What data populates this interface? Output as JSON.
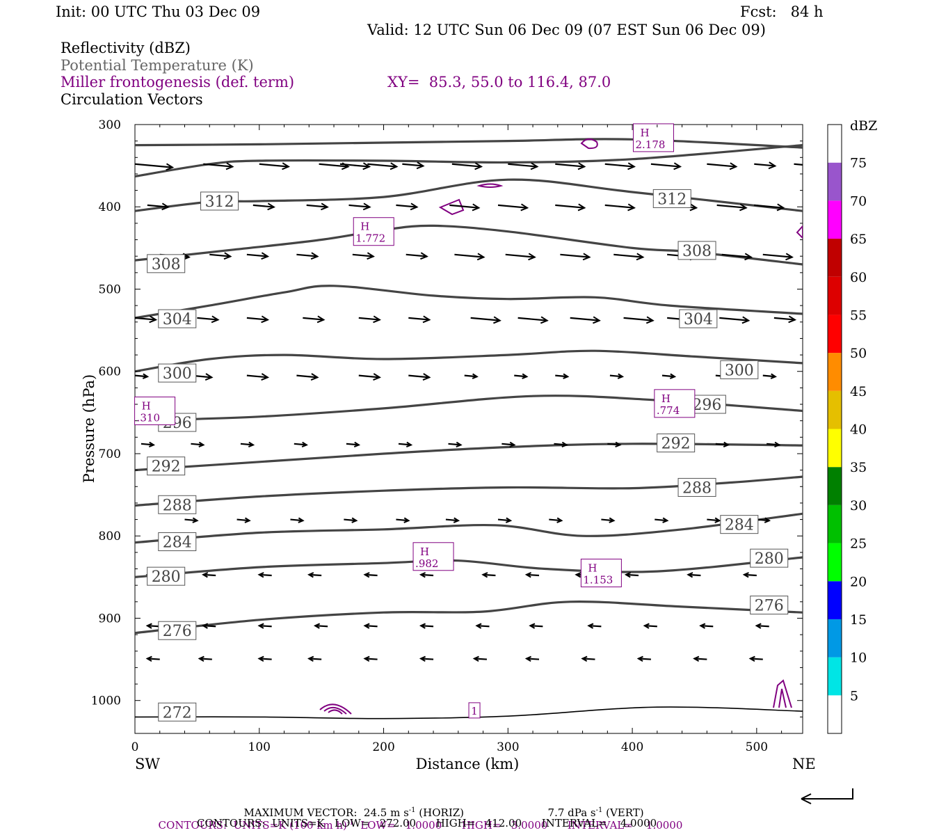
{
  "header": {
    "init": "Init: 00 UTC Thu 03 Dec 09",
    "fcst": "Fcst:   84 h",
    "valid": "Valid: 12 UTC Sun 06 Dec 09 (07 EST Sun 06 Dec 09)",
    "field1": "Reflectivity (dBZ)",
    "field2": "Potential Temperature (K)",
    "field3": "Miller frontogenesis (def. term)",
    "xy": "XY=  85.3, 55.0 to 116.4, 87.0",
    "field4": "Circulation Vectors"
  },
  "colors": {
    "theta": "#444444",
    "frontogenesis": "#800080",
    "vectors": "#000000"
  },
  "chart_data": {
    "type": "cross-section",
    "xlabel": "Distance (km)",
    "ylabel": "Pressure (hPa)",
    "xlim": [
      0,
      537
    ],
    "ylim": [
      1040,
      300
    ],
    "x_ticks": [
      0,
      100,
      200,
      300,
      400,
      500
    ],
    "y_ticks": [
      300,
      400,
      500,
      600,
      700,
      800,
      900,
      1000
    ],
    "left_end": "SW",
    "right_end": "NE",
    "theta_contours": [
      {
        "label": "312",
        "points": [
          [
            0,
            325
          ],
          [
            100,
            324
          ],
          [
            200,
            322
          ],
          [
            300,
            320
          ],
          [
            400,
            318
          ],
          [
            537,
            328
          ]
        ]
      },
      {
        "label": "312",
        "points": [
          [
            0,
            363
          ],
          [
            60,
            348
          ],
          [
            100,
            344
          ],
          [
            200,
            344
          ],
          [
            300,
            346
          ],
          [
            400,
            342
          ],
          [
            537,
            325
          ]
        ]
      },
      {
        "label": "312",
        "points": [
          [
            0,
            405
          ],
          [
            60,
            394
          ],
          [
            100,
            393
          ],
          [
            200,
            388
          ],
          [
            300,
            367
          ],
          [
            400,
            382
          ],
          [
            537,
            405
          ]
        ]
      },
      {
        "label": "308",
        "points": [
          [
            0,
            465
          ],
          [
            80,
            452
          ],
          [
            150,
            440
          ],
          [
            200,
            428
          ],
          [
            240,
            423
          ],
          [
            300,
            430
          ],
          [
            400,
            450
          ],
          [
            450,
            455
          ],
          [
            537,
            470
          ]
        ]
      },
      {
        "label": "304",
        "points": [
          [
            0,
            535
          ],
          [
            60,
            520
          ],
          [
            120,
            504
          ],
          [
            160,
            496
          ],
          [
            240,
            508
          ],
          [
            300,
            512
          ],
          [
            370,
            510
          ],
          [
            430,
            520
          ],
          [
            537,
            530
          ]
        ]
      },
      {
        "label": "300",
        "points": [
          [
            0,
            600
          ],
          [
            60,
            585
          ],
          [
            120,
            580
          ],
          [
            200,
            585
          ],
          [
            300,
            580
          ],
          [
            370,
            575
          ],
          [
            450,
            582
          ],
          [
            537,
            590
          ]
        ]
      },
      {
        "label": "296",
        "points": [
          [
            0,
            660
          ],
          [
            100,
            655
          ],
          [
            200,
            645
          ],
          [
            320,
            630
          ],
          [
            420,
            635
          ],
          [
            537,
            648
          ]
        ]
      },
      {
        "label": "292",
        "points": [
          [
            0,
            720
          ],
          [
            100,
            710
          ],
          [
            200,
            700
          ],
          [
            300,
            692
          ],
          [
            400,
            688
          ],
          [
            537,
            690
          ]
        ]
      },
      {
        "label": "288",
        "points": [
          [
            0,
            763
          ],
          [
            100,
            752
          ],
          [
            200,
            745
          ],
          [
            300,
            741
          ],
          [
            400,
            742
          ],
          [
            480,
            735
          ],
          [
            537,
            728
          ]
        ]
      },
      {
        "label": "284",
        "points": [
          [
            0,
            808
          ],
          [
            100,
            796
          ],
          [
            200,
            792
          ],
          [
            290,
            787
          ],
          [
            360,
            800
          ],
          [
            440,
            792
          ],
          [
            537,
            773
          ]
        ]
      },
      {
        "label": "280",
        "points": [
          [
            0,
            850
          ],
          [
            100,
            838
          ],
          [
            200,
            833
          ],
          [
            260,
            830
          ],
          [
            330,
            840
          ],
          [
            420,
            843
          ],
          [
            537,
            826
          ]
        ]
      },
      {
        "label": "276",
        "points": [
          [
            0,
            918
          ],
          [
            100,
            902
          ],
          [
            200,
            893
          ],
          [
            280,
            892
          ],
          [
            350,
            880
          ],
          [
            440,
            886
          ],
          [
            537,
            893
          ]
        ]
      },
      {
        "label": "272",
        "points": [
          [
            0,
            1020
          ],
          [
            100,
            1020
          ],
          [
            200,
            1022
          ],
          [
            300,
            1019
          ],
          [
            420,
            1008
          ],
          [
            537,
            1013
          ]
        ]
      }
    ],
    "theta_labels": [
      {
        "text": "312",
        "x": 68,
        "p": 393
      },
      {
        "text": "312",
        "x": 432,
        "p": 390
      },
      {
        "text": "308",
        "x": 25,
        "p": 469
      },
      {
        "text": "308",
        "x": 452,
        "p": 453
      },
      {
        "text": "304",
        "x": 34,
        "p": 536
      },
      {
        "text": "304",
        "x": 453,
        "p": 536
      },
      {
        "text": "300",
        "x": 34,
        "p": 602
      },
      {
        "text": "300",
        "x": 486,
        "p": 598
      },
      {
        "text": "296",
        "x": 34,
        "p": 662
      },
      {
        "text": "296",
        "x": 460,
        "p": 640
      },
      {
        "text": "292",
        "x": 25,
        "p": 715
      },
      {
        "text": "292",
        "x": 435,
        "p": 687
      },
      {
        "text": "288",
        "x": 34,
        "p": 762
      },
      {
        "text": "288",
        "x": 452,
        "p": 741
      },
      {
        "text": "284",
        "x": 34,
        "p": 807
      },
      {
        "text": "284",
        "x": 486,
        "p": 786
      },
      {
        "text": "280",
        "x": 25,
        "p": 849
      },
      {
        "text": "280",
        "x": 510,
        "p": 827
      },
      {
        "text": "276",
        "x": 34,
        "p": 915
      },
      {
        "text": "276",
        "x": 510,
        "p": 884
      },
      {
        "text": "272",
        "x": 34,
        "p": 1014
      }
    ],
    "frontogenesis_maxima": [
      {
        "text": "H",
        "value": "2.178",
        "x": 417,
        "p": 316
      },
      {
        "text": "H",
        "value": "1.772",
        "x": 192,
        "p": 430
      },
      {
        "text": "H",
        "value": ".310",
        "x": 16,
        "p": 648
      },
      {
        "text": "H",
        "value": ".774",
        "x": 434,
        "p": 639
      },
      {
        "text": "H",
        "value": ".982",
        "x": 240,
        "p": 825
      },
      {
        "text": "H",
        "value": "1.153",
        "x": 375,
        "p": 845
      },
      {
        "text": "",
        "value": "1",
        "x": 273,
        "p": 1012
      }
    ],
    "vectors": [
      {
        "p": 348,
        "items": [
          [
            0,
            -4
          ],
          [
            55,
            -3
          ],
          [
            100,
            -3
          ],
          [
            148,
            -3
          ],
          [
            165,
            -3
          ],
          [
            187,
            -3
          ],
          [
            215,
            -2
          ],
          [
            255,
            -3
          ],
          [
            300,
            -3
          ],
          [
            338,
            -3
          ],
          [
            378,
            -3
          ],
          [
            415,
            -3
          ],
          [
            460,
            -3
          ],
          [
            498,
            -2
          ],
          [
            530,
            -3
          ]
        ]
      },
      {
        "p": 398,
        "items": [
          [
            10,
            -2
          ],
          [
            55,
            -2
          ],
          [
            95,
            -2
          ],
          [
            138,
            -2
          ],
          [
            172,
            -2
          ],
          [
            210,
            -2
          ],
          [
            253,
            -3
          ],
          [
            292,
            -3
          ],
          [
            338,
            -3
          ],
          [
            378,
            -3
          ],
          [
            428,
            -3
          ],
          [
            468,
            -3
          ],
          [
            498,
            -3
          ],
          [
            537,
            -2
          ]
        ]
      },
      {
        "p": 458,
        "items": [
          [
            20,
            -3
          ],
          [
            60,
            -2
          ],
          [
            90,
            -2
          ],
          [
            130,
            -2
          ],
          [
            175,
            -2
          ],
          [
            218,
            -2
          ],
          [
            257,
            -3
          ],
          [
            298,
            -3
          ],
          [
            342,
            -3
          ],
          [
            385,
            -3
          ],
          [
            428,
            -3
          ],
          [
            472,
            -3
          ],
          [
            505,
            -3
          ],
          [
            537,
            -2
          ]
        ]
      },
      {
        "p": 535,
        "items": [
          [
            0,
            -2
          ],
          [
            50,
            -2
          ],
          [
            90,
            -2
          ],
          [
            135,
            -2
          ],
          [
            180,
            -2
          ],
          [
            220,
            -2
          ],
          [
            270,
            -3
          ],
          [
            308,
            -3
          ],
          [
            350,
            -3
          ],
          [
            393,
            -3
          ],
          [
            428,
            -3
          ],
          [
            470,
            -3
          ],
          [
            514,
            -2
          ]
        ]
      },
      {
        "p": 605,
        "items": [
          [
            0,
            -1
          ],
          [
            45,
            -2
          ],
          [
            90,
            -2
          ],
          [
            130,
            -2
          ],
          [
            180,
            -2
          ],
          [
            220,
            -2
          ],
          [
            265,
            -1
          ],
          [
            305,
            -1
          ],
          [
            338,
            -1
          ],
          [
            382,
            -1
          ],
          [
            424,
            -1
          ],
          [
            467,
            -1
          ],
          [
            505,
            -1
          ]
        ]
      },
      {
        "p": 688,
        "items": [
          [
            5,
            -1
          ],
          [
            45,
            -1
          ],
          [
            85,
            -1
          ],
          [
            128,
            -1
          ],
          [
            170,
            -1
          ],
          [
            212,
            -1
          ],
          [
            252,
            -1
          ],
          [
            295,
            -1
          ],
          [
            337,
            -1
          ],
          [
            380,
            -1
          ],
          [
            424,
            -1
          ],
          [
            467,
            -1
          ],
          [
            508,
            -1
          ]
        ]
      },
      {
        "p": 780,
        "items": [
          [
            40,
            -1
          ],
          [
            82,
            -1
          ],
          [
            125,
            -1
          ],
          [
            168,
            -1
          ],
          [
            210,
            -1
          ],
          [
            250,
            -1
          ],
          [
            292,
            -1
          ],
          [
            333,
            -1
          ],
          [
            375,
            -1
          ],
          [
            418,
            -1
          ],
          [
            460,
            -1
          ],
          [
            500,
            -1
          ]
        ]
      },
      {
        "p": 848,
        "items": [
          [
            20,
            1
          ],
          [
            65,
            1
          ],
          [
            110,
            1
          ],
          [
            150,
            1
          ],
          [
            195,
            1
          ],
          [
            240,
            1
          ],
          [
            290,
            1
          ],
          [
            325,
            1
          ],
          [
            365,
            1
          ],
          [
            405,
            1
          ],
          [
            455,
            1
          ],
          [
            500,
            1
          ]
        ]
      },
      {
        "p": 910,
        "items": [
          [
            20,
            1
          ],
          [
            65,
            1
          ],
          [
            110,
            1
          ],
          [
            155,
            1
          ],
          [
            195,
            1
          ],
          [
            240,
            1
          ],
          [
            285,
            1
          ],
          [
            328,
            1
          ],
          [
            375,
            1
          ],
          [
            420,
            1
          ],
          [
            465,
            1
          ],
          [
            510,
            1
          ]
        ]
      },
      {
        "p": 950,
        "items": [
          [
            20,
            1
          ],
          [
            62,
            1
          ],
          [
            110,
            1
          ],
          [
            150,
            1
          ],
          [
            195,
            1
          ],
          [
            240,
            1
          ],
          [
            283,
            1
          ],
          [
            325,
            1
          ],
          [
            370,
            1
          ],
          [
            415,
            1
          ],
          [
            460,
            1
          ],
          [
            505,
            1
          ]
        ]
      }
    ],
    "reflectivity_colorbar": {
      "unit": "dBZ",
      "levels": [
        "5",
        "10",
        "15",
        "20",
        "25",
        "30",
        "35",
        "40",
        "45",
        "50",
        "55",
        "60",
        "65",
        "70",
        "75"
      ],
      "colors": [
        "#ffffff",
        "#00e5e5",
        "#0099e5",
        "#0000ff",
        "#00ff00",
        "#00c000",
        "#008000",
        "#ffff00",
        "#e5bf00",
        "#ff8c00",
        "#ff0000",
        "#dd0000",
        "#c00000",
        "#ff00ff",
        "#9955cc",
        "#ffffff"
      ]
    }
  },
  "footer": {
    "maxvec": "MAXIMUM VECTOR:  24.5 m s",
    "maxvec_sup": "-1",
    "maxvec_h": " (HORIZ)",
    "maxvec_v": "7.7 dPa s",
    "maxvec_v_sup": "-1",
    "maxvec_v2": " (VERT)",
    "contours1": "CONTOURS:  UNITS=K (100 km h)",
    "contours1_sup": "-1",
    "contours1_rest": "  LOW=   1.0000      HIGH=   3.0000      INTERVAL=    1.0000",
    "contours2": "CONTOURS:  UNITS=K   LOW=   272.00      HIGH=   412.00      INTERVAL=    4.0000"
  }
}
